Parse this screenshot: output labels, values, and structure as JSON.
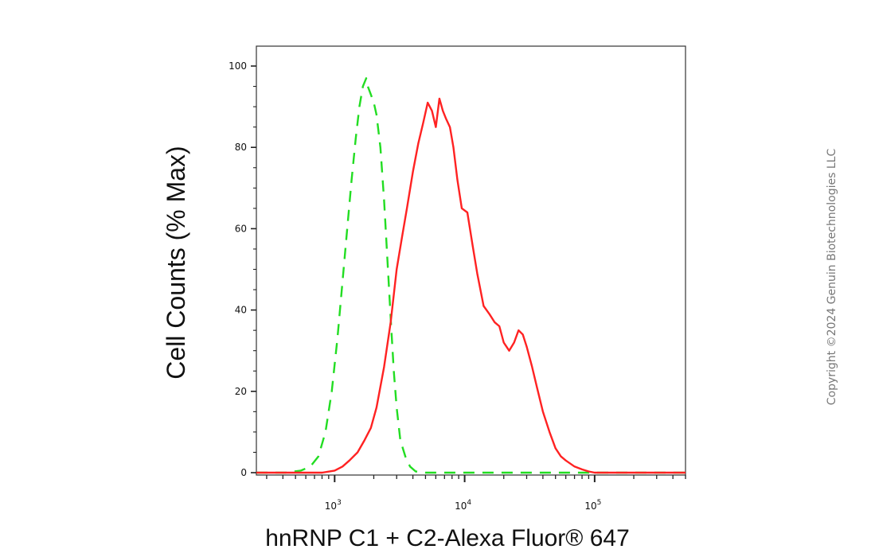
{
  "chart_data": {
    "type": "line",
    "xlabel": "hnRNP C1 + C2-Alexa Fluor® 647",
    "ylabel": "Cell Counts (% Max)",
    "x_scale": "log",
    "xlim": [
      250,
      500000
    ],
    "ylim": [
      0,
      105
    ],
    "y_ticks": [
      0,
      20,
      40,
      60,
      80,
      100
    ],
    "x_ticks": [
      {
        "value": 1000,
        "base": "10",
        "exp": "3"
      },
      {
        "value": 10000,
        "base": "10",
        "exp": "4"
      },
      {
        "value": 100000,
        "base": "10",
        "exp": "5"
      }
    ],
    "grid": false,
    "legend": "none",
    "series": [
      {
        "style": "dashed",
        "color": "#22dd22",
        "x": [
          250,
          420,
          550,
          650,
          750,
          850,
          950,
          1050,
          1150,
          1250,
          1350,
          1450,
          1550,
          1650,
          1750,
          1800,
          1900,
          2000,
          2100,
          2250,
          2400,
          2550,
          2700,
          2850,
          3000,
          3200,
          3500,
          3800,
          4200,
          5000,
          10000,
          50000,
          500000
        ],
        "y": [
          0,
          0,
          0.5,
          1.5,
          4,
          10,
          20,
          33,
          47,
          60,
          72,
          82,
          90,
          95,
          97,
          95,
          93,
          91,
          88,
          80,
          67,
          52,
          38,
          25,
          16,
          8,
          4,
          1.5,
          0.3,
          0,
          0,
          0,
          0
        ]
      },
      {
        "style": "solid",
        "color": "#ff2222",
        "x": [
          250,
          800,
          1000,
          1150,
          1300,
          1500,
          1700,
          1900,
          2100,
          2400,
          2700,
          3000,
          3300,
          3600,
          4000,
          4400,
          4800,
          5200,
          5600,
          6000,
          6400,
          6800,
          7200,
          7700,
          8200,
          8800,
          9500,
          10500,
          11500,
          12500,
          14000,
          15500,
          17000,
          18500,
          20000,
          22000,
          24000,
          26000,
          28000,
          30000,
          33000,
          36000,
          40000,
          45000,
          50000,
          55000,
          60000,
          70000,
          80000,
          90000,
          100000,
          120000,
          150000,
          200000,
          500000
        ],
        "y": [
          0,
          0,
          0.5,
          1.5,
          3,
          5,
          8,
          11,
          16,
          26,
          37,
          50,
          58,
          65,
          74,
          81,
          86,
          91,
          89,
          85,
          92,
          89,
          87,
          85,
          80,
          72,
          65,
          64,
          56,
          49,
          41,
          39,
          37,
          36,
          32,
          30,
          32,
          35,
          34,
          31,
          26,
          21,
          15,
          10,
          6,
          4,
          3,
          1.5,
          0.8,
          0.3,
          0,
          0,
          0,
          0,
          0
        ]
      }
    ]
  },
  "copyright": "Copyright ©2024 Genuin Biotechnologies LLC"
}
